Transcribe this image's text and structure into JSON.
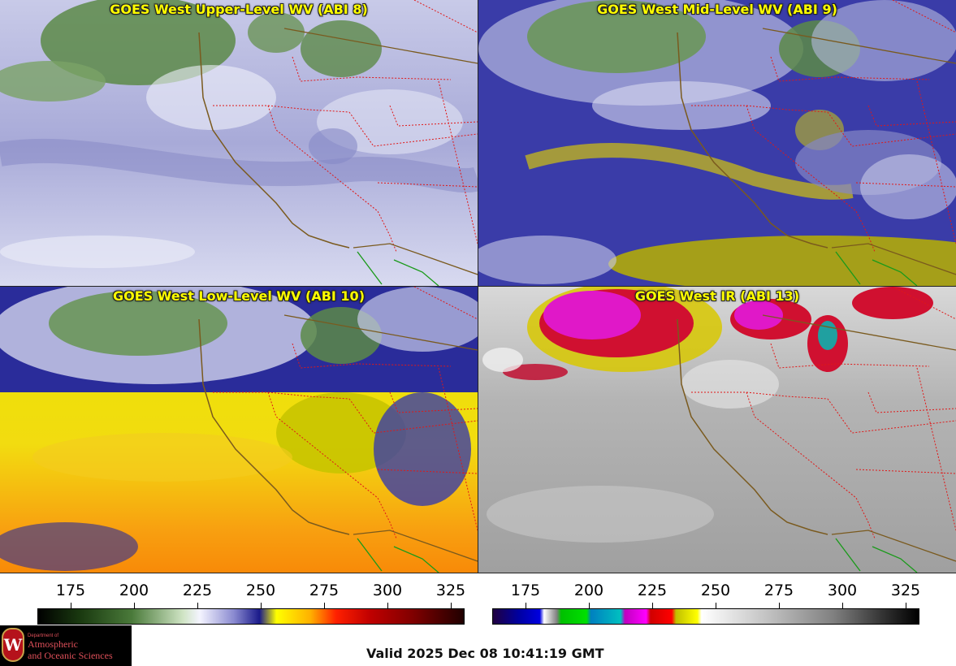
{
  "panels": [
    {
      "id": "upper",
      "title": "GOES West Upper-Level WV (ABI 8)"
    },
    {
      "id": "mid",
      "title": "GOES West Mid-Level WV (ABI 9)"
    },
    {
      "id": "low",
      "title": "GOES West Low-Level WV (ABI 10)"
    },
    {
      "id": "ir",
      "title": "GOES West IR (ABI 13)"
    }
  ],
  "colorbars": {
    "wv": {
      "ticks": [
        "175",
        "200",
        "225",
        "250",
        "275",
        "300",
        "325"
      ]
    },
    "ir": {
      "ticks": [
        "175",
        "200",
        "225",
        "250",
        "275",
        "300",
        "325"
      ]
    }
  },
  "footer": {
    "valid_time": "Valid 2025 Dec 08 10:41:19 GMT",
    "logo": {
      "line1": "Department of",
      "line2": "Atmospheric",
      "line3": "and Oceanic Sciences",
      "seal": "W"
    }
  },
  "colors": {
    "coastline": "#7a5a1e",
    "state_border": "#e01818",
    "mexico_border": "#1a9a1a",
    "title_text": "#ffff00"
  }
}
